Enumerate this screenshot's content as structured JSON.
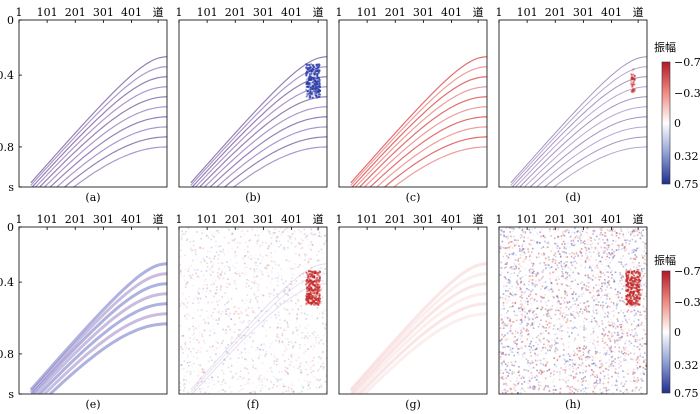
{
  "figure": {
    "x_tick_labels": [
      "1",
      "101",
      "201",
      "301",
      "401",
      "道"
    ],
    "y_tick_labels": [
      "0",
      "0.4",
      "0.8",
      "s"
    ],
    "panels": [
      {
        "id": "a",
        "caption": "(a)",
        "row": 0,
        "col": 0,
        "content": "events",
        "tint": "purple",
        "anomaly": "none"
      },
      {
        "id": "b",
        "caption": "(b)",
        "row": 0,
        "col": 1,
        "content": "events",
        "tint": "purple",
        "anomaly": "blue-patch"
      },
      {
        "id": "c",
        "caption": "(c)",
        "row": 0,
        "col": 2,
        "content": "events",
        "tint": "red",
        "anomaly": "none"
      },
      {
        "id": "d",
        "caption": "(d)",
        "row": 0,
        "col": 3,
        "content": "events-thin",
        "tint": "purple",
        "anomaly": "faint"
      },
      {
        "id": "e",
        "caption": "(e)",
        "row": 1,
        "col": 0,
        "content": "events-bands",
        "tint": "blue",
        "anomaly": "none"
      },
      {
        "id": "f",
        "caption": "(f)",
        "row": 1,
        "col": 1,
        "content": "noise",
        "tint": "mixed",
        "anomaly": "red-patch"
      },
      {
        "id": "g",
        "caption": "(g)",
        "row": 1,
        "col": 2,
        "content": "faint-bands",
        "tint": "red",
        "anomaly": "none"
      },
      {
        "id": "h",
        "caption": "(h)",
        "row": 1,
        "col": 3,
        "content": "strong-noise",
        "tint": "mixed",
        "anomaly": "red-patch"
      }
    ],
    "colorbars": [
      {
        "title": "振幅",
        "labels": [
          "−0.75",
          "−0.32",
          "0",
          "0.32",
          "0.75"
        ],
        "top_color": "#b2182b",
        "mid_color": "#ffffff",
        "bottom_color": "#1f2f8f"
      },
      {
        "title": "振幅",
        "labels": [
          "−0.75",
          "−0.32",
          "0",
          "0.32",
          "0.75"
        ],
        "top_color": "#b2182b",
        "mid_color": "#ffffff",
        "bottom_color": "#1f2f8f"
      }
    ]
  }
}
